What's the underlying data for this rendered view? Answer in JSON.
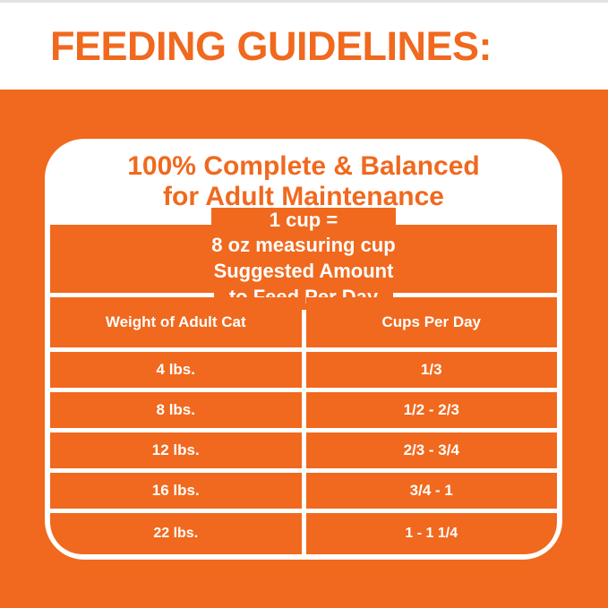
{
  "header": {
    "title": "FEEDING GUIDELINES:"
  },
  "panel": {
    "heading": {
      "line1": "100% Complete & Balanced",
      "line2": "for Adult Maintenance"
    }
  },
  "table": {
    "cup_note": {
      "line1": "1 cup =",
      "line2": "8 oz measuring cup"
    },
    "suggested": {
      "line1": "Suggested Amount",
      "line2": "to Feed Per Day"
    },
    "columns": {
      "left": "Weight of Adult Cat",
      "right": "Cups Per Day"
    },
    "rows": [
      {
        "weight": "4 lbs.",
        "cups": "1/3"
      },
      {
        "weight": "8 lbs.",
        "cups": "1/2 - 2/3"
      },
      {
        "weight": "12 lbs.",
        "cups": "2/3 - 3/4"
      },
      {
        "weight": "16 lbs.",
        "cups": "3/4 - 1"
      },
      {
        "weight": "22 lbs.",
        "cups": "1 - 1 1/4"
      }
    ]
  },
  "colors": {
    "brand_orange": "#f0691e",
    "panel_white": "#ffffff"
  },
  "chart_data": {
    "type": "table",
    "title": "FEEDING GUIDELINES: 100% Complete & Balanced for Adult Maintenance",
    "note": "1 cup = 8 oz measuring cup",
    "columns": [
      "Weight of Adult Cat",
      "Cups Per Day (Suggested Amount to Feed Per Day)"
    ],
    "rows": [
      [
        "4 lbs.",
        "1/3"
      ],
      [
        "8 lbs.",
        "1/2 - 2/3"
      ],
      [
        "12 lbs.",
        "2/3 - 3/4"
      ],
      [
        "16 lbs.",
        "3/4 - 1"
      ],
      [
        "22 lbs.",
        "1 - 1 1/4"
      ]
    ]
  }
}
